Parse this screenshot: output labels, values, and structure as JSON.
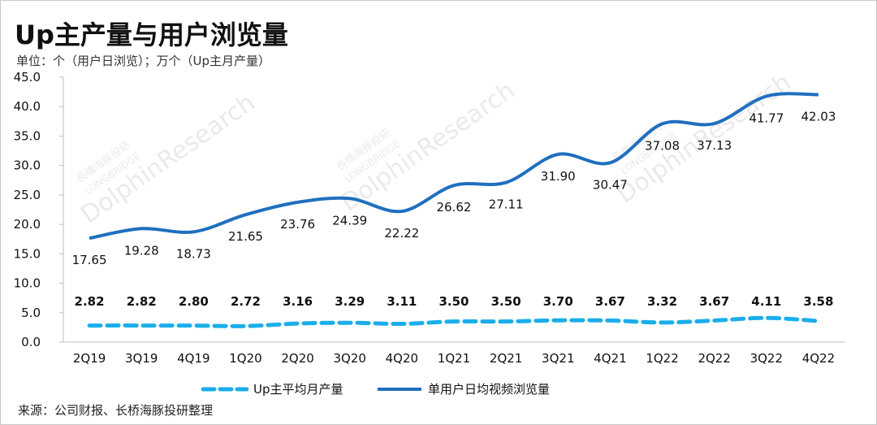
{
  "title": "Up主产量与用户浏览量",
  "subtitle": "单位：个（用户日浏览）；万个（Up主月产量）",
  "source": "来源：公司财报、长桥海豚投研整理",
  "watermark": {
    "brand_cn": "長橋海豚投研",
    "brand_en": "LONGBRIDGE",
    "brand_main": "DolphinResearch"
  },
  "colors": {
    "line_series": "#1f6fbf",
    "dashed_series": "#1aaeea",
    "axis": "#bfbfbf",
    "text": "#111111"
  },
  "chart_data": {
    "type": "line",
    "categories": [
      "2Q19",
      "3Q19",
      "4Q19",
      "1Q20",
      "2Q20",
      "3Q20",
      "4Q20",
      "1Q21",
      "2Q21",
      "3Q21",
      "4Q21",
      "1Q22",
      "2Q22",
      "3Q22",
      "4Q22"
    ],
    "ylim": [
      0,
      45
    ],
    "yticks": [
      "0.0",
      "5.0",
      "10.0",
      "15.0",
      "20.0",
      "25.0",
      "30.0",
      "35.0",
      "40.0",
      "45.0"
    ],
    "grid": false,
    "legend_position": "bottom",
    "series": [
      {
        "name": "Up主平均月产量",
        "style": "dashed",
        "values": [
          2.82,
          2.82,
          2.8,
          2.72,
          3.16,
          3.29,
          3.11,
          3.5,
          3.5,
          3.7,
          3.67,
          3.32,
          3.67,
          4.11,
          3.58
        ],
        "labels": [
          "2.82",
          "2.82",
          "2.80",
          "2.72",
          "3.16",
          "3.29",
          "3.11",
          "3.50",
          "3.50",
          "3.70",
          "3.67",
          "3.32",
          "3.67",
          "4.11",
          "3.58"
        ]
      },
      {
        "name": "单用户日均视频浏览量",
        "style": "solid",
        "values": [
          17.65,
          19.28,
          18.73,
          21.65,
          23.76,
          24.39,
          22.22,
          26.62,
          27.11,
          31.9,
          30.47,
          37.08,
          37.13,
          41.77,
          42.03
        ],
        "labels": [
          "17.65",
          "19.28",
          "18.73",
          "21.65",
          "23.76",
          "24.39",
          "22.22",
          "26.62",
          "27.11",
          "31.90",
          "30.47",
          "37.08",
          "37.13",
          "41.77",
          "42.03"
        ]
      }
    ]
  }
}
